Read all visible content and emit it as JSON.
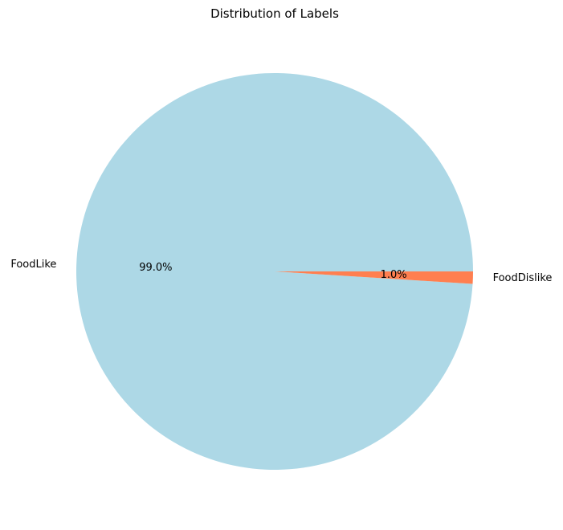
{
  "chart_data": {
    "type": "pie",
    "title": "Distribution of Labels",
    "start_angle_deg": 0,
    "direction": "counterclockwise",
    "slices": [
      {
        "label": "FoodLike",
        "value": 99.0,
        "pct_label": "99.0%",
        "color": "#add8e6"
      },
      {
        "label": "FoodDislike",
        "value": 1.0,
        "pct_label": "1.0%",
        "color": "#ff7f50"
      }
    ]
  }
}
